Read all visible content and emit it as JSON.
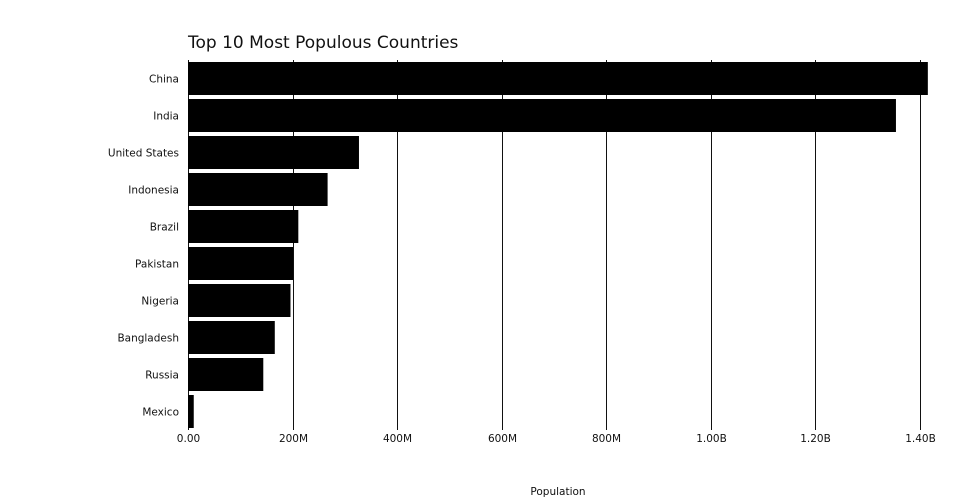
{
  "chart_data": {
    "type": "bar",
    "orientation": "horizontal",
    "title": "Top 10 Most Populous Countries",
    "xlabel": "Population",
    "ylabel": "",
    "categories": [
      "China",
      "India",
      "United States",
      "Indonesia",
      "Brazil",
      "Pakistan",
      "Nigeria",
      "Bangladesh",
      "Russia",
      "Mexico"
    ],
    "values": [
      1415000000,
      1354000000,
      327000000,
      267000000,
      211000000,
      201000000,
      196000000,
      166000000,
      144000000,
      11000000
    ],
    "xlim": [
      0,
      1420000000
    ],
    "xticks": [
      {
        "value": 0,
        "label": "0.00"
      },
      {
        "value": 200000000,
        "label": "200M"
      },
      {
        "value": 400000000,
        "label": "400M"
      },
      {
        "value": 600000000,
        "label": "600M"
      },
      {
        "value": 800000000,
        "label": "800M"
      },
      {
        "value": 1000000000,
        "label": "1.00B"
      },
      {
        "value": 1200000000,
        "label": "1.20B"
      },
      {
        "value": 1400000000,
        "label": "1.40B"
      }
    ],
    "grid": "vertical",
    "bar_color": "#000000",
    "grid_color": "#111111"
  }
}
